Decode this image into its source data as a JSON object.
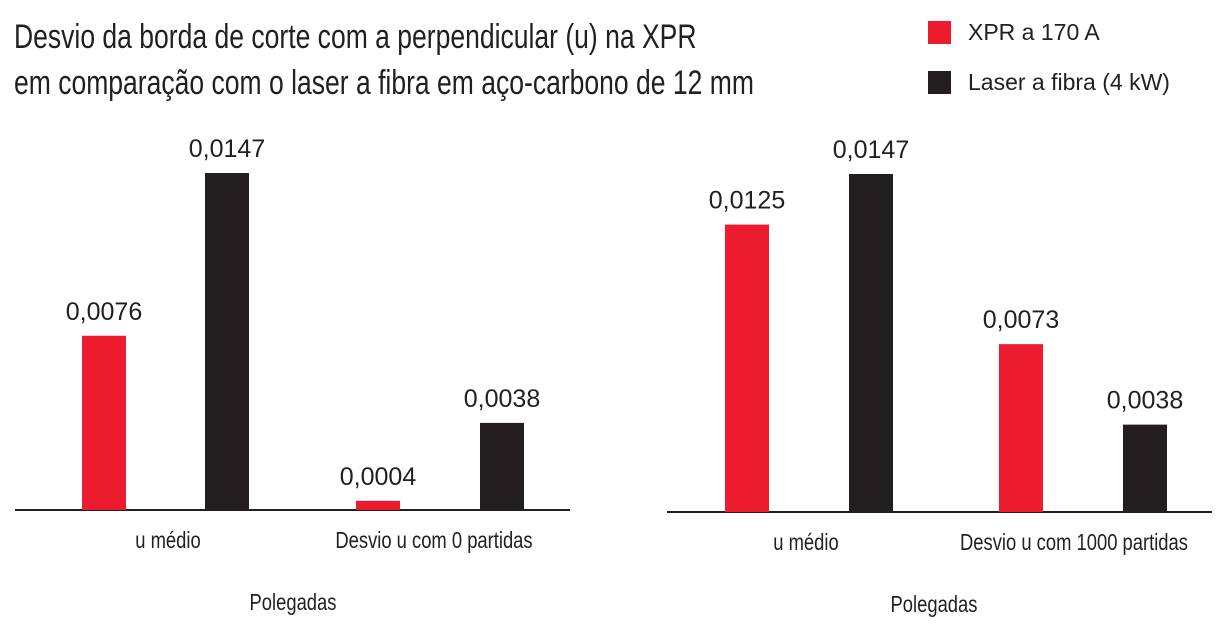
{
  "title": {
    "line1": "Desvio da borda de corte com a perpendicular (u) na XPR",
    "line2": "em comparação com o laser a fibra em aço-carbono de 12 mm"
  },
  "colors": {
    "xpr": "#ec1c2e",
    "laser": "#231f20"
  },
  "legend": [
    {
      "label": "XPR a 170 A",
      "color": "#ec1c2e"
    },
    {
      "label": "Laser a fibra (4 kW)",
      "color": "#231f20"
    }
  ],
  "chart_data": [
    {
      "type": "bar",
      "categories": [
        "u médio",
        "Desvio u com 0 partidas"
      ],
      "series": [
        {
          "name": "XPR a 170 A",
          "values": [
            0.0076,
            0.0004
          ],
          "labels": [
            "0,0076",
            "0,0004"
          ]
        },
        {
          "name": "Laser a fibra (4 kW)",
          "values": [
            0.0147,
            0.0038
          ],
          "labels": [
            "0,0147",
            "0,0038"
          ]
        }
      ],
      "xlabel": "Polegadas",
      "grid": false,
      "legend": "top-right"
    },
    {
      "type": "bar",
      "categories": [
        "u médio",
        "Desvio u com 1000 partidas"
      ],
      "series": [
        {
          "name": "XPR a 170 A",
          "values": [
            0.0125,
            0.0073
          ],
          "labels": [
            "0,0125",
            "0,0073"
          ]
        },
        {
          "name": "Laser a fibra (4 kW)",
          "values": [
            0.0147,
            0.0038
          ],
          "labels": [
            "0,0147",
            "0,0038"
          ]
        }
      ],
      "xlabel": "Polegadas",
      "grid": false,
      "legend": "top-right"
    }
  ]
}
